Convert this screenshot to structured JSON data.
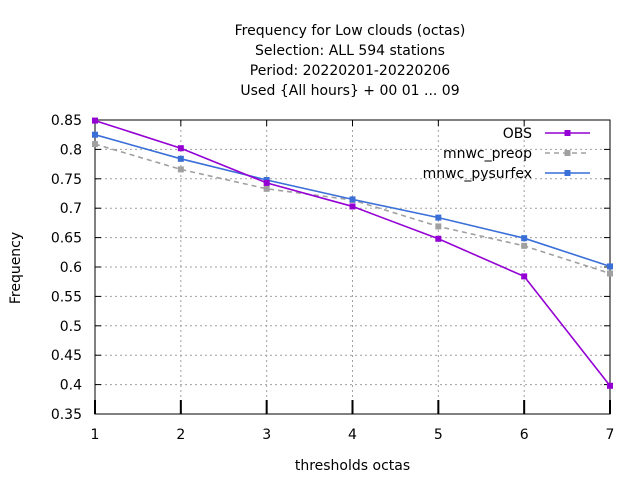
{
  "chart_data": {
    "type": "line",
    "title_lines": [
      "Frequency  for Low clouds (octas)",
      "Selection: ALL    594 stations",
      "Period: 20220201-20220206",
      "Used {All hours} + 00 01 ... 09"
    ],
    "xlabel": "thresholds octas",
    "ylabel": "Frequency",
    "x": [
      1,
      2,
      3,
      4,
      5,
      6,
      7
    ],
    "xlim": [
      1,
      7
    ],
    "ylim": [
      0.35,
      0.85
    ],
    "yticks": [
      "0.35",
      "0.4",
      "0.45",
      "0.5",
      "0.55",
      "0.6",
      "0.65",
      "0.7",
      "0.75",
      "0.8",
      "0.85"
    ],
    "xticks": [
      "1",
      "2",
      "3",
      "4",
      "5",
      "6",
      "7"
    ],
    "grid": true,
    "legend_position": "top-right",
    "series": [
      {
        "name": "OBS",
        "color": "#9400d3",
        "dash": "solid",
        "values": [
          0.849,
          0.802,
          0.743,
          0.703,
          0.648,
          0.584,
          0.398
        ]
      },
      {
        "name": "mnwc_preop",
        "color": "#a0a0a0",
        "dash": "dashed",
        "values": [
          0.809,
          0.766,
          0.733,
          0.714,
          0.669,
          0.636,
          0.589
        ]
      },
      {
        "name": "mnwc_pysurfex",
        "color": "#3a6fd8",
        "dash": "solid",
        "values": [
          0.825,
          0.784,
          0.748,
          0.715,
          0.684,
          0.649,
          0.601
        ]
      }
    ]
  }
}
